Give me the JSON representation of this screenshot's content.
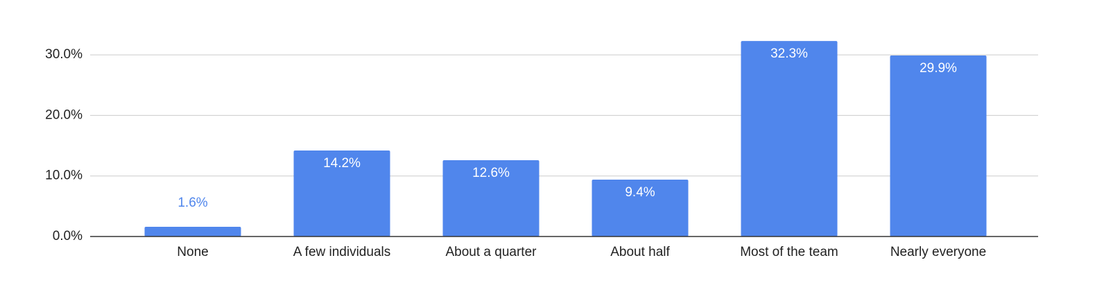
{
  "chart_data": {
    "type": "bar",
    "categories": [
      "None",
      "A few individuals",
      "About a quarter",
      "About half",
      "Most of the team",
      "Nearly everyone"
    ],
    "values": [
      1.6,
      14.2,
      12.6,
      9.4,
      32.3,
      29.9
    ],
    "value_labels": [
      "1.6%",
      "14.2%",
      "12.6%",
      "9.4%",
      "32.3%",
      "29.9%"
    ],
    "color": "#5086ec",
    "ylim": [
      0,
      35
    ],
    "yticks": [
      {
        "value": 0,
        "label": "0.0%"
      },
      {
        "value": 10,
        "label": "10.0%"
      },
      {
        "value": 20,
        "label": "20.0%"
      },
      {
        "value": 30,
        "label": "30.0%"
      }
    ],
    "grid": true
  }
}
